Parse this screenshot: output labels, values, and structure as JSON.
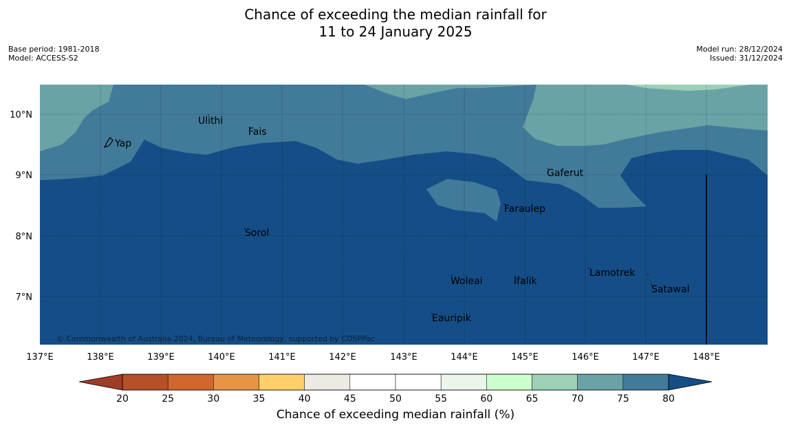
{
  "header": {
    "title_line1": "Chance of exceeding the median rainfall for",
    "title_line2": "11 to 24 January 2025",
    "base_period": "Base period: 1981-2018",
    "model": "Model: ACCESS-S2",
    "model_run": "Model run: 28/12/2024",
    "issued": "Issued: 31/12/2024"
  },
  "map": {
    "lon_labels": [
      "137°E",
      "138°E",
      "139°E",
      "140°E",
      "141°E",
      "142°E",
      "143°E",
      "144°E",
      "145°E",
      "146°E",
      "147°E",
      "148°E"
    ],
    "lat_labels": [
      "10°N",
      "9°N",
      "8°N",
      "7°N"
    ],
    "places": {
      "yap": "Yap",
      "ulithi": "Ulithi",
      "fais": "Fais",
      "gaferut": "Gaferut",
      "faraulep": "Faraulep",
      "sorol": "Sorol",
      "woleai": "Woleai",
      "ifalik": "Ifalik",
      "lamotrek": "Lamotrek",
      "satawal": "Satawal",
      "eauripik": "Eauripik"
    },
    "copyright": "© Commonwealth of Australia 2024, Bureau of Meteorology, supported by COSPPac",
    "colors": {
      "above_80": "#154d87",
      "c75_80": "#427a99",
      "c70_75": "#6aa3a5",
      "c65_70": "#9dd1b7"
    }
  },
  "colorbar": {
    "ticks": [
      "20",
      "25",
      "30",
      "35",
      "40",
      "45",
      "50",
      "55",
      "60",
      "65",
      "70",
      "75",
      "80"
    ],
    "colors": [
      "#9d3d25",
      "#b84f2b",
      "#d1662f",
      "#e69547",
      "#ffd06a",
      "#ede9e3",
      "#ffffff",
      "#ffffff",
      "#ebf5ec",
      "#cbffcc",
      "#9dd1b7",
      "#6aa3a5",
      "#427a99",
      "#154d87"
    ],
    "label": "Chance of exceeding median rainfall (%)"
  }
}
